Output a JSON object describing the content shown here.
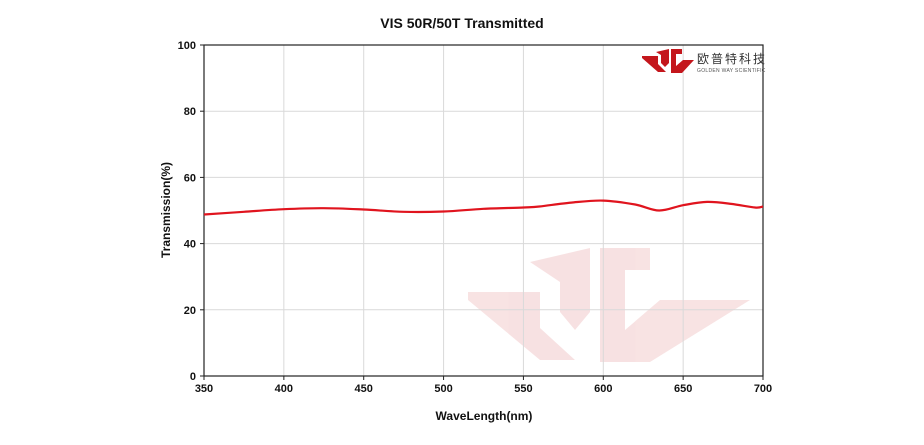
{
  "chart_data": {
    "type": "line",
    "title": "VIS 50R/50T Transmitted",
    "xlabel": "WaveLength(nm)",
    "ylabel": "Transmission(%)",
    "xlim": [
      350,
      700
    ],
    "ylim": [
      0,
      100
    ],
    "xticks": [
      350,
      400,
      450,
      500,
      550,
      600,
      650,
      700
    ],
    "yticks": [
      0,
      20,
      40,
      60,
      80,
      100
    ],
    "grid": true,
    "legend": "none",
    "series": [
      {
        "color": "#e0141e",
        "x": [
          350,
          375,
          400,
          425,
          450,
          475,
          500,
          525,
          550,
          560,
          580,
          600,
          620,
          635,
          650,
          665,
          680,
          695,
          700
        ],
        "y": [
          48.8,
          49.6,
          50.4,
          50.7,
          50.3,
          49.6,
          49.7,
          50.5,
          50.9,
          51.2,
          52.4,
          53.0,
          51.8,
          50.0,
          51.6,
          52.6,
          52.0,
          50.9,
          51.2
        ]
      }
    ]
  },
  "logo": {
    "name_cn": "欧普特科技",
    "name_en": "GOLDEN WAY SCIENTIFIC",
    "color": "#c4161c"
  }
}
